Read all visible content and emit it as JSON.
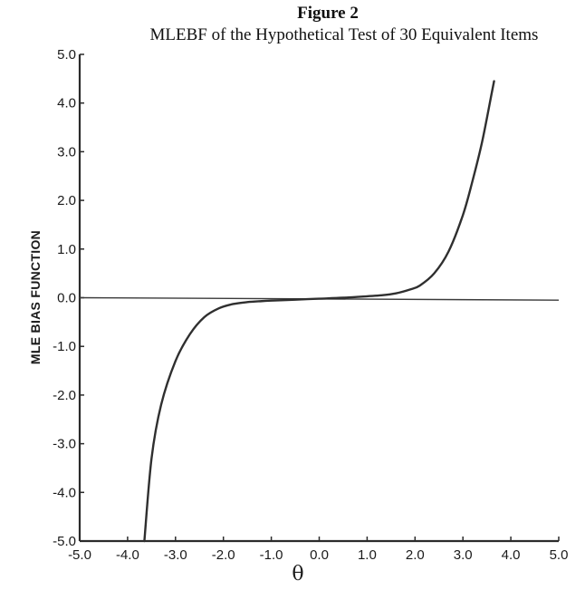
{
  "figure_label": "Figure 2",
  "chart_data": {
    "type": "line",
    "title": "MLEBF of the Hypothetical Test of 30 Equivalent Items",
    "xlabel": "θ",
    "ylabel": "MLE BIAS FUNCTION",
    "xlim": [
      -5.0,
      5.0
    ],
    "ylim": [
      -5.0,
      5.0
    ],
    "xticks": [
      "-5.0",
      "-4.0",
      "-3.0",
      "-2.0",
      "-1.0",
      "0.0",
      "1.0",
      "2.0",
      "3.0",
      "4.0",
      "5.0"
    ],
    "yticks": [
      "5.0",
      "4.0",
      "3.0",
      "2.0",
      "1.0",
      "0.0",
      "-1.0",
      "-2.0",
      "-3.0",
      "-4.0",
      "-5.0"
    ],
    "grid": false,
    "reference_line": {
      "x": [
        -5.0,
        5.0
      ],
      "y": [
        0.0,
        -0.05
      ]
    },
    "series": [
      {
        "x": [
          -3.65,
          -3.5,
          -3.3,
          -3.0,
          -2.7,
          -2.4,
          -2.1,
          -1.8,
          -1.5,
          -1.2,
          -1.0,
          -0.5,
          0.0,
          0.5,
          1.0,
          1.3,
          1.6,
          1.9,
          2.1,
          2.4,
          2.7,
          3.0,
          3.2,
          3.4,
          3.6,
          3.65
        ],
        "y": [
          -5.0,
          -3.3,
          -2.2,
          -1.3,
          -0.75,
          -0.4,
          -0.22,
          -0.13,
          -0.09,
          -0.07,
          -0.06,
          -0.04,
          -0.02,
          0.0,
          0.03,
          0.05,
          0.09,
          0.17,
          0.25,
          0.5,
          0.95,
          1.7,
          2.4,
          3.2,
          4.2,
          4.45
        ]
      }
    ]
  }
}
